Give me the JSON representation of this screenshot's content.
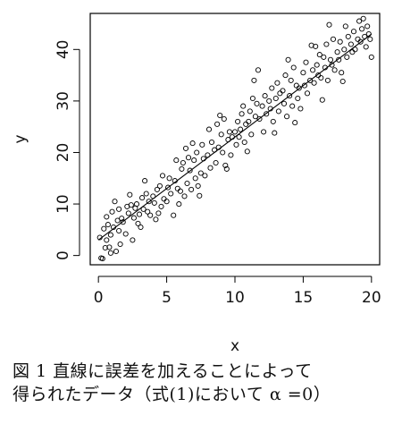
{
  "caption": {
    "line1": "図 1 直線に誤差を加えることによって",
    "line2": "得られたデータ（式(1)において α =0）"
  },
  "chart_data": {
    "type": "scatter",
    "xlabel": "x",
    "ylabel": "y",
    "xlim": [
      -0.6,
      20.6
    ],
    "ylim": [
      -1.8,
      47
    ],
    "xticks": [
      0,
      5,
      10,
      15,
      20
    ],
    "yticks": [
      0,
      10,
      20,
      30,
      40
    ],
    "grid": false,
    "point_marker": "open-circle",
    "fit_line": {
      "slope": 2.0,
      "intercept": 3.0,
      "x_range": [
        0,
        20
      ]
    },
    "series": [
      {
        "points": [
          [
            0.1,
            3.5
          ],
          [
            0.2,
            -0.5
          ],
          [
            0.3,
            -0.6
          ],
          [
            0.4,
            5.2
          ],
          [
            0.5,
            1.5
          ],
          [
            0.6,
            7.5
          ],
          [
            0.7,
            6.0
          ],
          [
            0.8,
            1.6
          ],
          [
            0.9,
            4.0
          ],
          [
            1.0,
            8.5
          ],
          [
            1.1,
            5.5
          ],
          [
            1.2,
            10.5
          ],
          [
            1.3,
            0.8
          ],
          [
            1.4,
            6.8
          ],
          [
            1.5,
            9.0
          ],
          [
            1.6,
            2.2
          ],
          [
            1.7,
            7.2
          ],
          [
            1.8,
            6.5
          ],
          [
            2.0,
            4.2
          ],
          [
            2.1,
            9.5
          ],
          [
            2.2,
            8.2
          ],
          [
            2.4,
            9.8
          ],
          [
            2.5,
            3.0
          ],
          [
            2.6,
            7.3
          ],
          [
            2.7,
            9.2
          ],
          [
            2.8,
            10.0
          ],
          [
            3.0,
            8.0
          ],
          [
            3.1,
            5.5
          ],
          [
            3.2,
            11.2
          ],
          [
            3.3,
            9.0
          ],
          [
            3.5,
            12.0
          ],
          [
            3.6,
            8.5
          ],
          [
            3.7,
            10.5
          ],
          [
            3.8,
            7.8
          ],
          [
            4.0,
            11.5
          ],
          [
            4.1,
            10.2
          ],
          [
            4.2,
            7.0
          ],
          [
            4.3,
            12.8
          ],
          [
            4.5,
            13.5
          ],
          [
            4.6,
            9.5
          ],
          [
            4.7,
            15.5
          ],
          [
            4.8,
            11.0
          ],
          [
            5.0,
            10.5
          ],
          [
            5.1,
            13.2
          ],
          [
            5.2,
            15.0
          ],
          [
            5.3,
            12.0
          ],
          [
            5.5,
            7.8
          ],
          [
            5.6,
            14.5
          ],
          [
            5.7,
            18.5
          ],
          [
            5.8,
            13.0
          ],
          [
            6.0,
            12.5
          ],
          [
            6.1,
            16.8
          ],
          [
            6.2,
            18.0
          ],
          [
            6.3,
            11.5
          ],
          [
            6.5,
            14.0
          ],
          [
            6.6,
            19.0
          ],
          [
            6.7,
            16.5
          ],
          [
            6.8,
            12.8
          ],
          [
            7.0,
            18.5
          ],
          [
            7.1,
            15.0
          ],
          [
            7.2,
            20.0
          ],
          [
            7.3,
            13.5
          ],
          [
            7.5,
            16.0
          ],
          [
            7.6,
            21.5
          ],
          [
            7.7,
            18.8
          ],
          [
            7.8,
            15.5
          ],
          [
            8.0,
            19.5
          ],
          [
            8.1,
            24.5
          ],
          [
            8.2,
            17.0
          ],
          [
            8.3,
            22.0
          ],
          [
            8.5,
            20.5
          ],
          [
            8.6,
            18.0
          ],
          [
            8.7,
            25.5
          ],
          [
            8.8,
            21.0
          ],
          [
            9.0,
            23.5
          ],
          [
            9.1,
            20.0
          ],
          [
            9.2,
            26.5
          ],
          [
            9.3,
            17.5
          ],
          [
            9.5,
            22.5
          ],
          [
            9.6,
            24.0
          ],
          [
            9.7,
            19.5
          ],
          [
            9.8,
            23.0
          ],
          [
            10.0,
            24.0
          ],
          [
            10.1,
            21.5
          ],
          [
            10.2,
            26.0
          ],
          [
            10.3,
            23.0
          ],
          [
            10.5,
            27.5
          ],
          [
            10.6,
            29.0
          ],
          [
            10.7,
            22.0
          ],
          [
            10.8,
            25.5
          ],
          [
            11.0,
            26.0
          ],
          [
            11.1,
            28.0
          ],
          [
            11.2,
            23.5
          ],
          [
            11.3,
            30.5
          ],
          [
            11.5,
            27.0
          ],
          [
            11.6,
            29.5
          ],
          [
            11.7,
            36.0
          ],
          [
            11.8,
            26.5
          ],
          [
            12.0,
            29.0
          ],
          [
            12.1,
            24.0
          ],
          [
            12.2,
            31.0
          ],
          [
            12.3,
            27.5
          ],
          [
            12.5,
            30.0
          ],
          [
            12.6,
            28.5
          ],
          [
            12.7,
            32.5
          ],
          [
            12.8,
            26.0
          ],
          [
            13.0,
            30.5
          ],
          [
            13.1,
            33.5
          ],
          [
            13.2,
            28.0
          ],
          [
            13.3,
            31.5
          ],
          [
            13.5,
            32.0
          ],
          [
            13.6,
            29.5
          ],
          [
            13.7,
            35.0
          ],
          [
            13.8,
            27.0
          ],
          [
            14.0,
            31.0
          ],
          [
            14.1,
            34.0
          ],
          [
            14.2,
            29.0
          ],
          [
            14.3,
            36.5
          ],
          [
            14.5,
            33.0
          ],
          [
            14.6,
            30.5
          ],
          [
            14.7,
            32.5
          ],
          [
            14.8,
            28.5
          ],
          [
            15.0,
            35.5
          ],
          [
            15.1,
            33.0
          ],
          [
            15.2,
            37.5
          ],
          [
            15.3,
            31.5
          ],
          [
            15.5,
            34.0
          ],
          [
            15.6,
            40.8
          ],
          [
            15.7,
            36.0
          ],
          [
            15.8,
            33.5
          ],
          [
            16.0,
            37.0
          ],
          [
            16.1,
            35.0
          ],
          [
            16.2,
            39.0
          ],
          [
            16.3,
            34.5
          ],
          [
            16.5,
            38.5
          ],
          [
            16.6,
            36.5
          ],
          [
            16.7,
            41.0
          ],
          [
            16.8,
            34.0
          ],
          [
            17.0,
            38.0
          ],
          [
            17.1,
            37.0
          ],
          [
            17.2,
            42.0
          ],
          [
            17.3,
            36.0
          ],
          [
            17.5,
            39.5
          ],
          [
            17.6,
            38.0
          ],
          [
            17.7,
            41.5
          ],
          [
            17.8,
            35.5
          ],
          [
            18.0,
            40.0
          ],
          [
            18.1,
            44.5
          ],
          [
            18.2,
            38.5
          ],
          [
            18.3,
            42.5
          ],
          [
            18.5,
            41.0
          ],
          [
            18.6,
            39.5
          ],
          [
            18.7,
            43.5
          ],
          [
            18.8,
            40.0
          ],
          [
            19.0,
            42.0
          ],
          [
            19.1,
            45.5
          ],
          [
            19.2,
            41.5
          ],
          [
            19.3,
            44.0
          ],
          [
            19.5,
            42.5
          ],
          [
            19.6,
            40.5
          ],
          [
            19.7,
            44.5
          ],
          [
            19.8,
            43.0
          ],
          [
            19.9,
            42.0
          ],
          [
            20.0,
            38.5
          ],
          [
            0.6,
            3.0
          ],
          [
            1.5,
            4.8
          ],
          [
            2.9,
            6.2
          ],
          [
            4.4,
            8.2
          ],
          [
            5.9,
            10.0
          ],
          [
            7.4,
            11.6
          ],
          [
            9.4,
            16.8
          ],
          [
            10.9,
            20.2
          ],
          [
            12.9,
            23.8
          ],
          [
            14.4,
            25.8
          ],
          [
            16.4,
            30.2
          ],
          [
            17.9,
            33.8
          ],
          [
            3.4,
            14.5
          ],
          [
            6.4,
            20.8
          ],
          [
            8.9,
            27.2
          ],
          [
            11.4,
            34.0
          ],
          [
            13.9,
            38.0
          ],
          [
            16.9,
            44.8
          ],
          [
            0.9,
            0.5
          ],
          [
            19.4,
            46.0
          ],
          [
            15.9,
            40.6
          ],
          [
            10.4,
            24.5
          ],
          [
            6.9,
            21.8
          ],
          [
            2.3,
            11.8
          ]
        ]
      }
    ]
  }
}
